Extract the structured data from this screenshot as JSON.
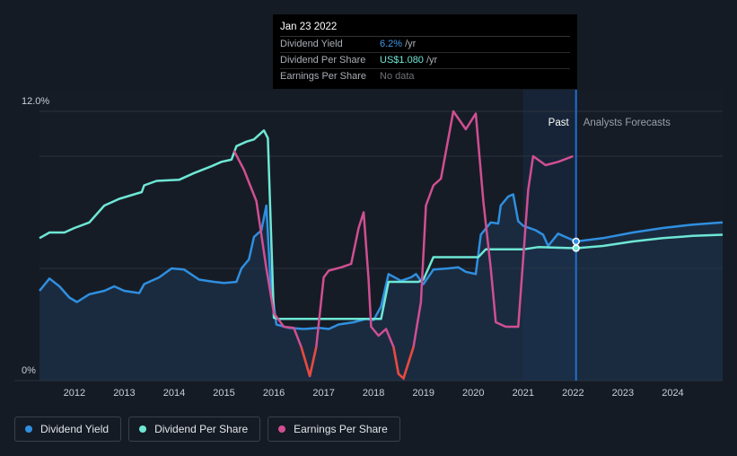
{
  "chart_data": {
    "type": "line",
    "y_axis": {
      "min": 0,
      "max": 12,
      "unit": "%",
      "tick_labels": [
        "12.0%",
        "0%"
      ]
    },
    "x_axis": {
      "range": [
        2011.3,
        2025.0
      ],
      "tick_labels": [
        "2012",
        "2013",
        "2014",
        "2015",
        "2016",
        "2017",
        "2018",
        "2019",
        "2020",
        "2021",
        "2022",
        "2023",
        "2024"
      ]
    },
    "regions": {
      "past_label": "Past",
      "forecast_label": "Analysts Forecasts",
      "past_start": 2021.0,
      "cursor": 2022.06
    },
    "series": [
      {
        "name": "Dividend Yield",
        "color": "#2f8fe0",
        "area": true,
        "points": [
          [
            2011.3,
            4.0
          ],
          [
            2011.5,
            4.55
          ],
          [
            2011.7,
            4.2
          ],
          [
            2011.9,
            3.7
          ],
          [
            2012.05,
            3.5
          ],
          [
            2012.3,
            3.85
          ],
          [
            2012.6,
            4.0
          ],
          [
            2012.8,
            4.2
          ],
          [
            2013.0,
            4.0
          ],
          [
            2013.3,
            3.9
          ],
          [
            2013.4,
            4.3
          ],
          [
            2013.7,
            4.6
          ],
          [
            2013.95,
            5.0
          ],
          [
            2014.2,
            4.95
          ],
          [
            2014.5,
            4.5
          ],
          [
            2014.8,
            4.4
          ],
          [
            2015.0,
            4.35
          ],
          [
            2015.25,
            4.4
          ],
          [
            2015.35,
            5.0
          ],
          [
            2015.5,
            5.4
          ],
          [
            2015.6,
            6.4
          ],
          [
            2015.75,
            6.7
          ],
          [
            2015.85,
            7.8
          ],
          [
            2015.93,
            4.5
          ],
          [
            2016.05,
            2.5
          ],
          [
            2016.3,
            2.35
          ],
          [
            2016.6,
            2.3
          ],
          [
            2016.9,
            2.35
          ],
          [
            2017.1,
            2.3
          ],
          [
            2017.3,
            2.5
          ],
          [
            2017.6,
            2.6
          ],
          [
            2017.85,
            2.75
          ],
          [
            2018.0,
            2.7
          ],
          [
            2018.15,
            3.3
          ],
          [
            2018.3,
            4.75
          ],
          [
            2018.55,
            4.45
          ],
          [
            2018.75,
            4.6
          ],
          [
            2018.85,
            4.75
          ],
          [
            2019.0,
            4.3
          ],
          [
            2019.2,
            4.95
          ],
          [
            2019.5,
            5.0
          ],
          [
            2019.7,
            5.05
          ],
          [
            2019.85,
            4.85
          ],
          [
            2020.05,
            4.75
          ],
          [
            2020.15,
            6.5
          ],
          [
            2020.35,
            7.05
          ],
          [
            2020.5,
            7.0
          ],
          [
            2020.55,
            7.8
          ],
          [
            2020.7,
            8.2
          ],
          [
            2020.8,
            8.3
          ],
          [
            2020.9,
            7.1
          ],
          [
            2021.0,
            6.9
          ],
          [
            2021.25,
            6.7
          ],
          [
            2021.4,
            6.5
          ],
          [
            2021.5,
            6.0
          ],
          [
            2021.7,
            6.55
          ],
          [
            2021.85,
            6.4
          ],
          [
            2022.06,
            6.2
          ],
          [
            2022.6,
            6.35
          ],
          [
            2023.2,
            6.6
          ],
          [
            2023.8,
            6.8
          ],
          [
            2024.4,
            6.95
          ],
          [
            2025.0,
            7.05
          ]
        ]
      },
      {
        "name": "Dividend Per Share",
        "color": "#6ee7d5",
        "area": false,
        "points": [
          [
            2011.3,
            6.35
          ],
          [
            2011.5,
            6.6
          ],
          [
            2011.8,
            6.6
          ],
          [
            2012.0,
            6.8
          ],
          [
            2012.3,
            7.05
          ],
          [
            2012.6,
            7.8
          ],
          [
            2012.9,
            8.1
          ],
          [
            2013.2,
            8.3
          ],
          [
            2013.35,
            8.4
          ],
          [
            2013.4,
            8.7
          ],
          [
            2013.65,
            8.9
          ],
          [
            2014.1,
            8.95
          ],
          [
            2014.4,
            9.25
          ],
          [
            2014.75,
            9.55
          ],
          [
            2014.95,
            9.75
          ],
          [
            2015.15,
            9.85
          ],
          [
            2015.25,
            10.45
          ],
          [
            2015.45,
            10.65
          ],
          [
            2015.6,
            10.75
          ],
          [
            2015.8,
            11.15
          ],
          [
            2015.88,
            10.8
          ],
          [
            2016.0,
            2.8
          ],
          [
            2016.1,
            2.75
          ],
          [
            2017.0,
            2.75
          ],
          [
            2017.9,
            2.75
          ],
          [
            2018.0,
            2.75
          ],
          [
            2018.15,
            2.75
          ],
          [
            2018.3,
            4.4
          ],
          [
            2018.9,
            4.4
          ],
          [
            2019.0,
            4.5
          ],
          [
            2019.2,
            5.5
          ],
          [
            2019.5,
            5.5
          ],
          [
            2020.1,
            5.5
          ],
          [
            2020.25,
            5.85
          ],
          [
            2020.8,
            5.85
          ],
          [
            2021.0,
            5.85
          ],
          [
            2021.3,
            5.95
          ],
          [
            2022.06,
            5.9
          ],
          [
            2022.6,
            6.0
          ],
          [
            2023.2,
            6.2
          ],
          [
            2023.8,
            6.35
          ],
          [
            2024.4,
            6.45
          ],
          [
            2025.0,
            6.5
          ]
        ]
      },
      {
        "name": "Earnings Per Share",
        "color": "#d04f92",
        "area": false,
        "points": [
          [
            2015.2,
            10.25
          ],
          [
            2015.4,
            9.4
          ],
          [
            2015.65,
            8.0
          ],
          [
            2015.85,
            5.0
          ],
          [
            2016.0,
            3.0
          ],
          [
            2016.2,
            2.4
          ],
          [
            2016.4,
            2.35
          ],
          [
            2016.55,
            1.5
          ],
          [
            2016.72,
            0.2
          ],
          [
            2016.85,
            1.5
          ],
          [
            2017.0,
            4.6
          ],
          [
            2017.1,
            4.9
          ],
          [
            2017.35,
            5.05
          ],
          [
            2017.55,
            5.2
          ],
          [
            2017.7,
            6.8
          ],
          [
            2017.8,
            7.5
          ],
          [
            2017.9,
            4.5
          ],
          [
            2017.95,
            2.4
          ],
          [
            2018.1,
            2.0
          ],
          [
            2018.25,
            2.3
          ],
          [
            2018.4,
            1.5
          ],
          [
            2018.5,
            0.3
          ],
          [
            2018.6,
            0.1
          ],
          [
            2018.8,
            1.5
          ],
          [
            2018.95,
            3.5
          ],
          [
            2019.05,
            7.8
          ],
          [
            2019.2,
            8.7
          ],
          [
            2019.35,
            9.0
          ],
          [
            2019.6,
            12.0
          ],
          [
            2019.85,
            11.2
          ],
          [
            2020.05,
            11.9
          ],
          [
            2020.2,
            8.0
          ],
          [
            2020.35,
            5.0
          ],
          [
            2020.45,
            2.6
          ],
          [
            2020.65,
            2.4
          ],
          [
            2020.9,
            2.4
          ],
          [
            2021.1,
            8.5
          ],
          [
            2021.2,
            10.0
          ],
          [
            2021.45,
            9.6
          ],
          [
            2021.7,
            9.75
          ],
          [
            2022.0,
            10.0
          ]
        ]
      }
    ],
    "segment_colors": {
      "eps_negative_growth": "#e84a3c"
    }
  },
  "tooltip": {
    "date": "Jan 23 2022",
    "rows": [
      {
        "label": "Dividend Yield",
        "value": "6.2%",
        "unit": "/yr"
      },
      {
        "label": "Dividend Per Share",
        "value": "US$1.080",
        "unit": "/yr"
      },
      {
        "label": "Earnings Per Share",
        "value": "No data",
        "unit": ""
      }
    ]
  },
  "legend": [
    {
      "label": "Dividend Yield",
      "color": "#2f8fe0"
    },
    {
      "label": "Dividend Per Share",
      "color": "#6ee7d5"
    },
    {
      "label": "Earnings Per Share",
      "color": "#d04f92"
    }
  ]
}
